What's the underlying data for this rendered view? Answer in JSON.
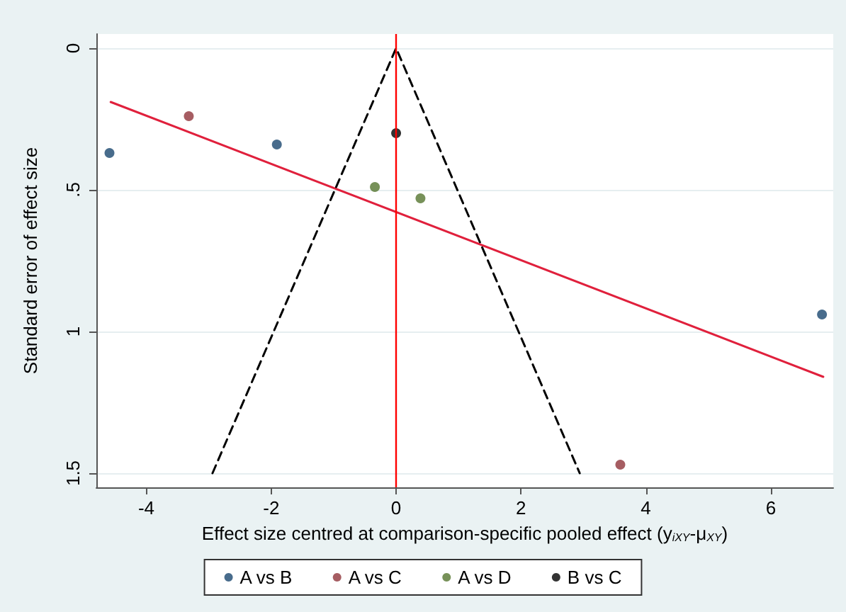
{
  "chart_data": {
    "type": "scatter",
    "xlabel": "Effect size centred at comparison-specific pooled effect (y$_{iXY}$-μ$_{XY}$)",
    "ylabel": "Standard error of effect size",
    "xlim": [
      -4.8,
      7.0
    ],
    "xticks": [
      -4,
      -2,
      0,
      2,
      4,
      6
    ],
    "ylim": [
      1.55,
      -0.05
    ],
    "yticks": [
      {
        "value": 0,
        "label": "0"
      },
      {
        "value": 0.5,
        "label": ".5"
      },
      {
        "value": 1,
        "label": "1"
      },
      {
        "value": 1.5,
        "label": "1.5"
      }
    ],
    "grid": "y",
    "legend": "bottom",
    "marker": "circle",
    "ref_lines": [
      {
        "axis": "x",
        "value": 0,
        "color": "#ff0000"
      }
    ],
    "series": [
      {
        "name": "A vs B",
        "color": "#1a476f",
        "x": [
          -4.59,
          -1.91,
          6.82
        ],
        "values": [
          0.37,
          0.34,
          0.94
        ]
      },
      {
        "name": "A vs C",
        "color": "#90353b",
        "x": [
          -3.32,
          3.59
        ],
        "values": [
          0.24,
          1.47
        ]
      },
      {
        "name": "A vs D",
        "color": "#55752f",
        "x": [
          -0.34,
          0.39
        ],
        "values": [
          0.49,
          0.53
        ]
      },
      {
        "name": "B vs C",
        "color": "#000000",
        "x": [
          0
        ],
        "values": [
          0.3
        ]
      },
      {
        "type": "line",
        "color": "#e0203c",
        "x": [
          -4.57,
          6.84
        ],
        "values": [
          0.19,
          1.16
        ],
        "marker": "none",
        "line_style": "solid"
      },
      {
        "type": "line",
        "color": "#000000",
        "x": [
          -2.94,
          0,
          2.94
        ],
        "values": [
          1.5,
          0,
          1.5
        ],
        "marker": "none",
        "line_style": "dashed"
      }
    ]
  }
}
